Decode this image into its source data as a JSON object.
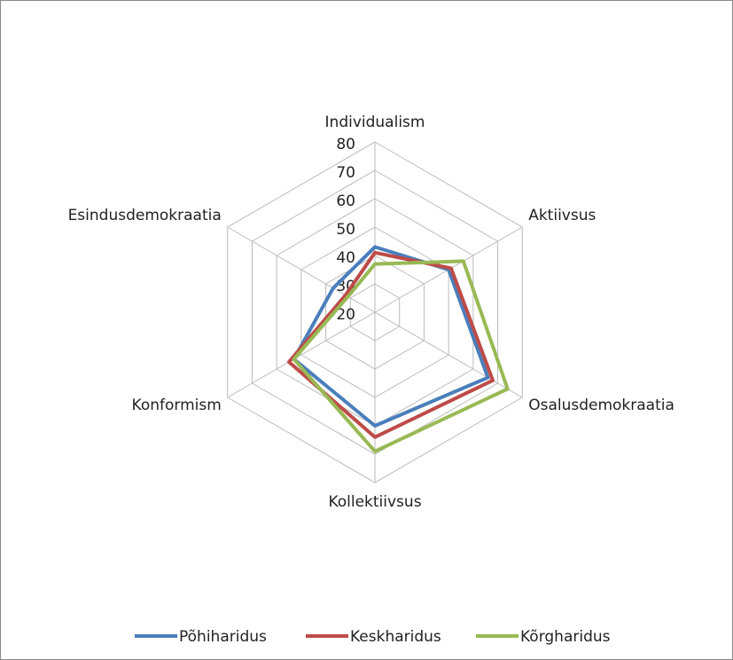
{
  "chart_data": {
    "type": "radar",
    "categories": [
      "Individualism",
      "Aktiivsus",
      "Osalusdemokraatia",
      "Kollektiivsus",
      "Konformism",
      "Esindusdemokraatia"
    ],
    "series": [
      {
        "name": "Põhiharidus",
        "color": "#4a7ebb",
        "values": [
          43,
          50,
          66,
          60,
          53,
          37
        ]
      },
      {
        "name": "Keskharidus",
        "color": "#be4b48",
        "values": [
          41,
          51,
          68,
          64,
          55,
          32
        ]
      },
      {
        "name": "Kõrgharidus",
        "color": "#98b954",
        "values": [
          37,
          56,
          74,
          69,
          53,
          31
        ]
      }
    ],
    "ylim": [
      20,
      80
    ],
    "yticks": [
      20,
      30,
      40,
      50,
      60,
      70,
      80
    ],
    "grid": true,
    "legend": "bottom"
  }
}
